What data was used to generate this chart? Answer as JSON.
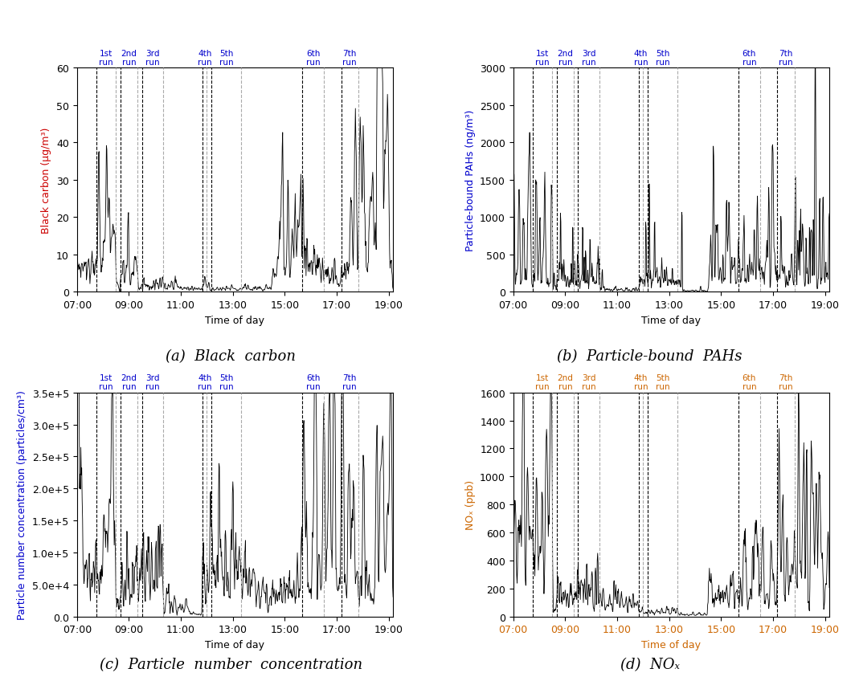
{
  "subplots": [
    {
      "title": "(a)  Black  carbon",
      "ylabel": "Black carbon (μg/m³)",
      "ylim": [
        0,
        60
      ],
      "yticks": [
        0,
        10,
        20,
        30,
        40,
        50,
        60
      ],
      "ylabel_color": "#cc0000",
      "run_label_color": "#0000cc"
    },
    {
      "title": "(b)  Particle-bound  PAHs",
      "ylabel": "Particle-bound PAHs (ng/m³)",
      "ylim": [
        0,
        3000
      ],
      "yticks": [
        0,
        500,
        1000,
        1500,
        2000,
        2500,
        3000
      ],
      "ylabel_color": "#0000cc",
      "run_label_color": "#0000cc"
    },
    {
      "title": "(c)  Particle  number  concentration",
      "ylabel": "Particle number concentration (particles/cm³)",
      "ylim": [
        0,
        350000.0
      ],
      "yticks": [
        0.0,
        50000.0,
        100000.0,
        150000.0,
        200000.0,
        250000.0,
        300000.0,
        350000.0
      ],
      "ytick_labels": [
        "0.0",
        "5.0e+4",
        "1.0e+5",
        "1.5e+5",
        "2.0e+5",
        "2.5e+5",
        "3.0e+5",
        "3.5e+5"
      ],
      "ylabel_color": "#0000cc",
      "run_label_color": "#0000cc"
    },
    {
      "title": "(d)  NOₓ",
      "ylabel": "NOₓ (ppb)",
      "ylim": [
        0,
        1600
      ],
      "yticks": [
        0,
        200,
        400,
        600,
        800,
        1000,
        1200,
        1400,
        1600
      ],
      "ylabel_color": "#cc6600",
      "run_label_color": "#cc6600",
      "xtick_color": "#cc6600"
    }
  ],
  "xlabel": "Time of day",
  "xticks": [
    7,
    9,
    11,
    13,
    15,
    17,
    19
  ],
  "xlim": [
    7.0,
    19.17
  ],
  "run_lines": {
    "starts": [
      7.75,
      8.67,
      9.5,
      11.83,
      12.17,
      15.67,
      17.17
    ],
    "ends": [
      8.5,
      9.33,
      10.33,
      12.0,
      13.33,
      16.5,
      17.83
    ],
    "labels": [
      "1st\nrun",
      "2nd\nrun",
      "3rd\nrun",
      "4th\nrun",
      "5th\nrun",
      "6th\nrun",
      "7th\nrun"
    ]
  },
  "run_line_color_dark": "#000000",
  "run_line_color_light": "#aaaaaa",
  "line_color": "#000000",
  "background": "#ffffff",
  "caption_fontsize": 13,
  "axis_label_fontsize": 9,
  "tick_fontsize": 9,
  "run_label_fontsize": 7.5
}
